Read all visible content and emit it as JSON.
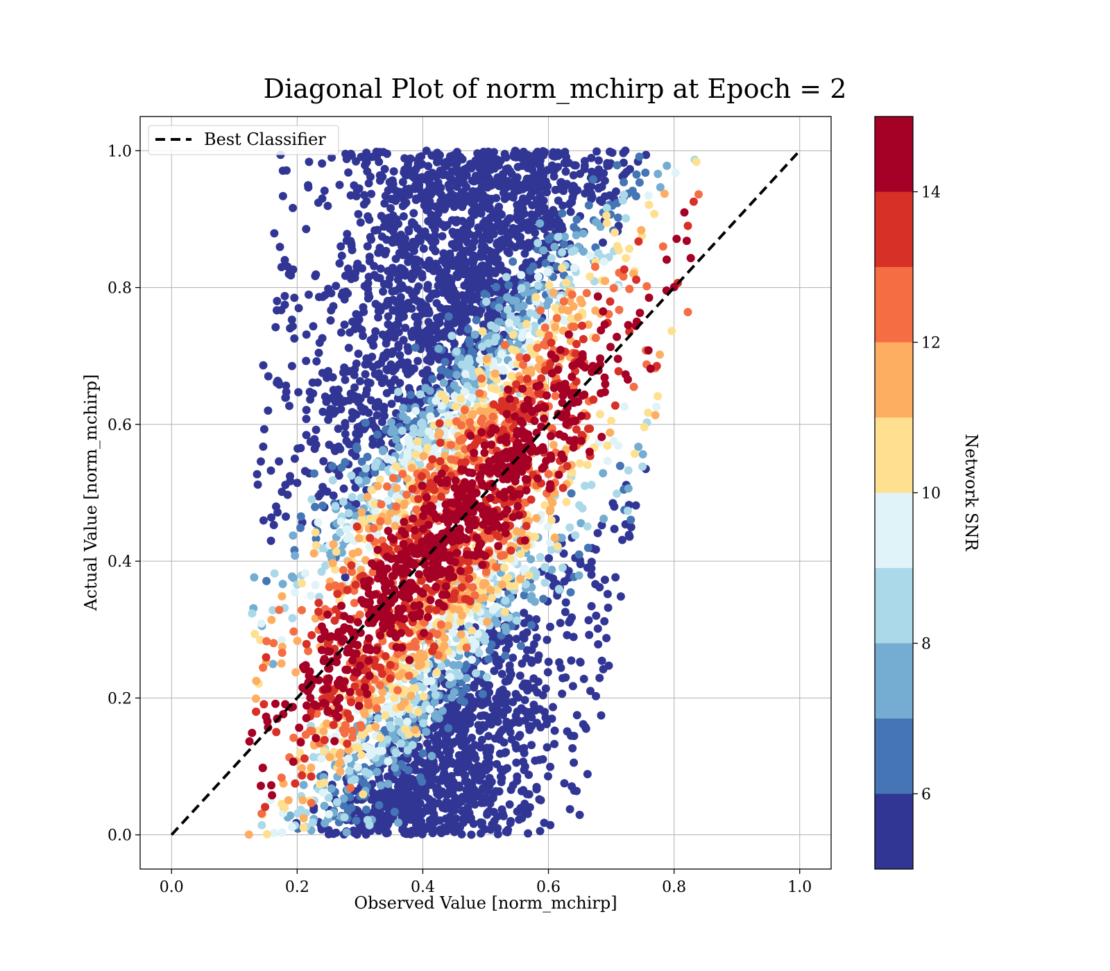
{
  "chart_data": {
    "type": "scatter",
    "title": "Diagonal Plot of norm_mchirp at Epoch = 2",
    "xlabel": "Observed Value [norm_mchirp]",
    "ylabel": "Actual Value [norm_mchirp]",
    "xlim": [
      -0.05,
      1.05
    ],
    "ylim": [
      -0.05,
      1.05
    ],
    "x_ticks": [
      "0.0",
      "0.2",
      "0.4",
      "0.6",
      "0.8",
      "1.0"
    ],
    "y_ticks": [
      "0.0",
      "0.2",
      "0.4",
      "0.6",
      "0.8",
      "1.0"
    ],
    "grid": true,
    "legend": {
      "placement": "upper-left",
      "entries": [
        {
          "label": "Best Classifier",
          "style": "dashed",
          "color": "#000000"
        }
      ]
    },
    "reference_line": {
      "name": "Best Classifier",
      "x": [
        0.0,
        1.0
      ],
      "y": [
        0.0,
        1.0
      ],
      "style": "dashed"
    },
    "scatter_description_bounds": {
      "actual_range": [
        0.0,
        1.0
      ],
      "observed_at_actual_0": [
        0.13,
        0.62
      ],
      "observed_at_actual_1": [
        0.2,
        0.83
      ]
    },
    "colorbar": {
      "label": "Network SNR",
      "range": [
        5,
        15
      ],
      "ticks": [
        "6",
        "8",
        "10",
        "12",
        "14"
      ],
      "tick_values": [
        6,
        8,
        10,
        12,
        14
      ],
      "levels": [
        5,
        6,
        7,
        8,
        9,
        10,
        11,
        12,
        13,
        14,
        15
      ],
      "colors": [
        "#313695",
        "#4575b4",
        "#74add1",
        "#abd9e9",
        "#e0f3f8",
        "#fee090",
        "#fdae61",
        "#f46d43",
        "#d73027",
        "#a50026"
      ]
    }
  }
}
